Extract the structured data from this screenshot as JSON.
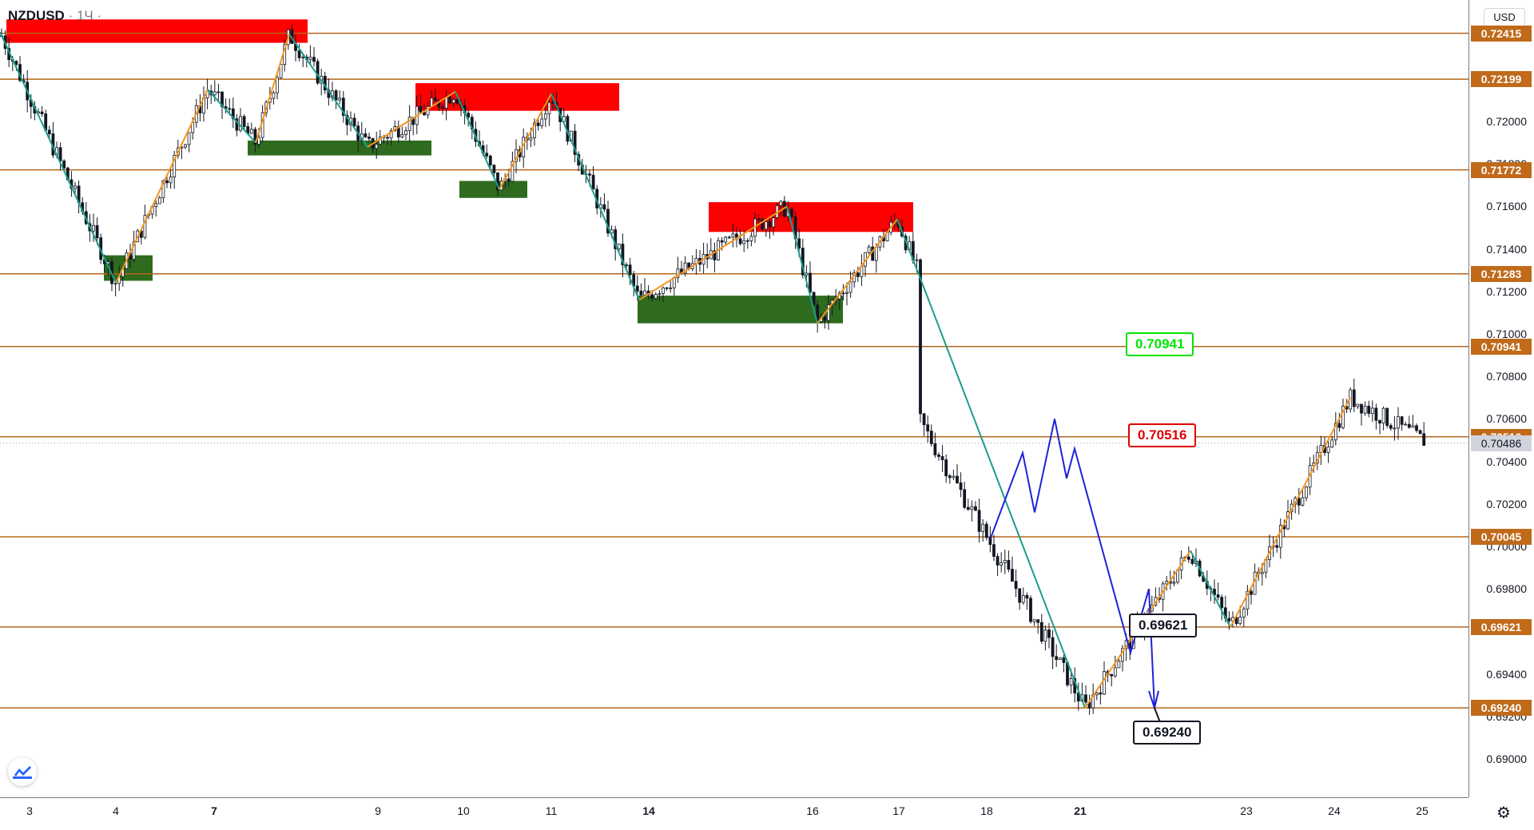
{
  "header": {
    "symbol": "NZDUSD",
    "interval": "· 1Ч ·"
  },
  "currency_button": "USD",
  "price_axis": {
    "ticks": [
      "0.72000",
      "0.71800",
      "0.71600",
      "0.71400",
      "0.71200",
      "0.71000",
      "0.70800",
      "0.70600",
      "0.70400",
      "0.70200",
      "0.70000",
      "0.69800",
      "0.69400",
      "0.69200",
      "0.69000"
    ],
    "levels": [
      "0.72415",
      "0.72199",
      "0.71772",
      "0.71283",
      "0.70941",
      "0.70516",
      "0.70045",
      "0.69621",
      "0.69240"
    ],
    "current": "0.70486"
  },
  "time_axis": [
    {
      "label": "3",
      "bold": false
    },
    {
      "label": "4",
      "bold": false
    },
    {
      "label": "7",
      "bold": true
    },
    {
      "label": "9",
      "bold": false
    },
    {
      "label": "10",
      "bold": false
    },
    {
      "label": "11",
      "bold": false
    },
    {
      "label": "14",
      "bold": true
    },
    {
      "label": "16",
      "bold": false
    },
    {
      "label": "17",
      "bold": false
    },
    {
      "label": "18",
      "bold": false
    },
    {
      "label": "21",
      "bold": true
    },
    {
      "label": "23",
      "bold": false
    },
    {
      "label": "24",
      "bold": false
    },
    {
      "label": "25",
      "bold": false
    }
  ],
  "callouts": {
    "green": "0.70941",
    "red": "0.70516",
    "black1": "0.69621",
    "black2": "0.69240"
  },
  "colors": {
    "level": "#b5651d",
    "supply": "#ff0000",
    "demand": "#2e6b1e",
    "zig_up": "#f7931a",
    "zig_down": "#1a9e8c",
    "projection": "#1f22d8",
    "bull": "#131722",
    "bear": "#131722"
  },
  "chart_data": {
    "type": "candlestick",
    "ylim": [
      0.6894,
      0.7274
    ],
    "horizontal_levels": [
      0.72415,
      0.72199,
      0.71772,
      0.71283,
      0.70941,
      0.70516,
      0.70045,
      0.69621,
      0.6924
    ],
    "current_price": 0.70486,
    "zigzag": [
      {
        "date": "3",
        "price": 0.7242
      },
      {
        "date": "4",
        "price": 0.7124
      },
      {
        "date": "6",
        "price": 0.7215
      },
      {
        "date": "7",
        "price": 0.719
      },
      {
        "date": "8",
        "price": 0.7241
      },
      {
        "date": "9",
        "price": 0.7188
      },
      {
        "date": "10",
        "price": 0.7214
      },
      {
        "date": "10",
        "price": 0.7168
      },
      {
        "date": "11",
        "price": 0.7213
      },
      {
        "date": "14",
        "price": 0.7116
      },
      {
        "date": "15",
        "price": 0.716
      },
      {
        "date": "16",
        "price": 0.7105
      },
      {
        "date": "16",
        "price": 0.7154
      },
      {
        "date": "17",
        "price": 0.7128
      },
      {
        "date": "20",
        "price": 0.6924
      },
      {
        "date": "22",
        "price": 0.6998
      },
      {
        "date": "22",
        "price": 0.6962
      },
      {
        "date": "24",
        "price": 0.707
      }
    ],
    "projection": [
      {
        "date": "18",
        "price": 0.7004
      },
      {
        "date": "19",
        "price": 0.706
      },
      {
        "date": "20",
        "price": 0.6924
      }
    ],
    "zones": [
      {
        "kind": "supply",
        "from": "3",
        "to": "8",
        "top": 0.7248,
        "bottom": 0.7237
      },
      {
        "kind": "supply",
        "from": "9",
        "to": "12",
        "top": 0.7218,
        "bottom": 0.7205
      },
      {
        "kind": "supply",
        "from": "15",
        "to": "17",
        "top": 0.7162,
        "bottom": 0.7148
      },
      {
        "kind": "demand",
        "from": "4",
        "to": "4",
        "top": 0.7137,
        "bottom": 0.7125
      },
      {
        "kind": "demand",
        "from": "7",
        "to": "9",
        "top": 0.7191,
        "bottom": 0.7184
      },
      {
        "kind": "demand",
        "from": "10",
        "to": "10",
        "top": 0.7172,
        "bottom": 0.7164
      },
      {
        "kind": "demand",
        "from": "14",
        "to": "16",
        "top": 0.7118,
        "bottom": 0.7105
      }
    ]
  }
}
